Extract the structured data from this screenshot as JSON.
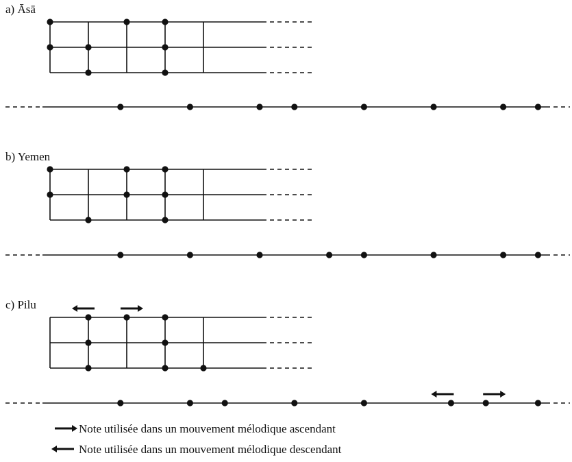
{
  "panels": [
    {
      "label": "a) Āsā",
      "grid_dots": [
        [
          0,
          0
        ],
        [
          2,
          0
        ],
        [
          3,
          0
        ],
        [
          0,
          1
        ],
        [
          1,
          1
        ],
        [
          3,
          1
        ],
        [
          1,
          2
        ],
        [
          3,
          2
        ]
      ],
      "arrows": [],
      "line_dots": [
        1,
        3,
        5,
        6,
        8,
        10,
        12,
        13
      ],
      "line_arrows": []
    },
    {
      "label": "b) Yemen",
      "grid_dots": [
        [
          0,
          0
        ],
        [
          2,
          0
        ],
        [
          3,
          0
        ],
        [
          0,
          1
        ],
        [
          2,
          1
        ],
        [
          3,
          1
        ],
        [
          1,
          2
        ],
        [
          3,
          2
        ]
      ],
      "arrows": [],
      "line_dots": [
        1,
        3,
        5,
        7,
        8,
        10,
        12,
        13
      ],
      "line_arrows": []
    },
    {
      "label": "c) Pilu",
      "grid_dots": [
        [
          1,
          0
        ],
        [
          2,
          0
        ],
        [
          3,
          0
        ],
        [
          1,
          1
        ],
        [
          3,
          1
        ],
        [
          1,
          2
        ],
        [
          3,
          2
        ],
        [
          4,
          2
        ]
      ],
      "arrows": [
        [
          1,
          "left"
        ],
        [
          2,
          "right"
        ]
      ],
      "line_dots": [
        1,
        3,
        4,
        6,
        8,
        10.5,
        11.5,
        13
      ],
      "line_arrows": [
        [
          10.5,
          "left"
        ],
        [
          11.5,
          "right"
        ]
      ]
    }
  ],
  "legend": [
    {
      "direction": "right",
      "text": "Note utilisée dans un mouvement mélodique ascendant"
    },
    {
      "direction": "left",
      "text": "Note utilisée dans un mouvement mélodique descendant"
    }
  ]
}
